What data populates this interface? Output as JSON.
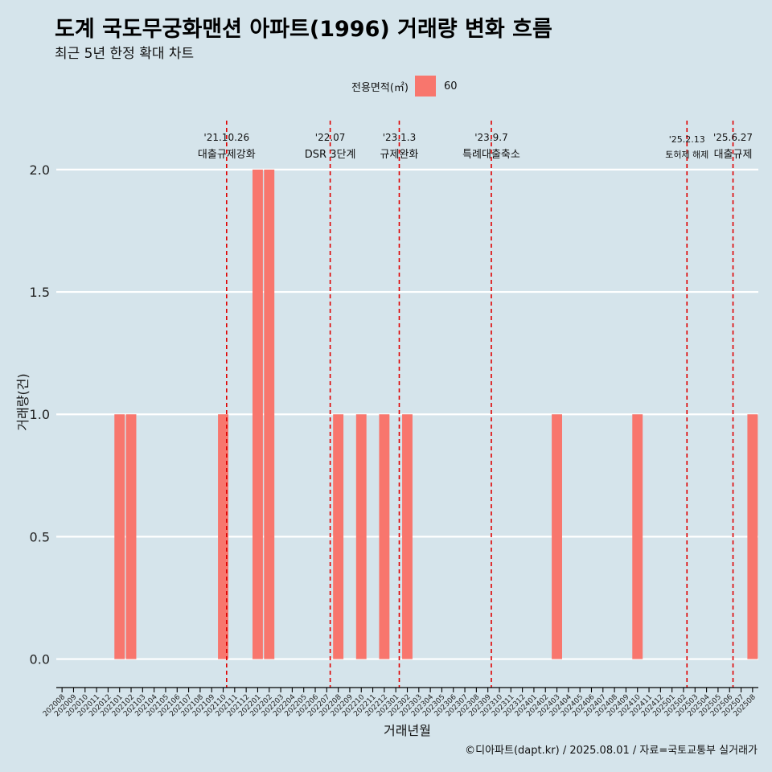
{
  "title": "도계 국도무궁화맨션 아파트(1996) 거래량 변화 흐름",
  "subtitle": "최근 5년 한정 확대 차트",
  "caption": "©디아파트(dapt.kr) / 2025.08.01 / 자료=국토교통부 실거래가",
  "colors": {
    "background": "#d5e4eb",
    "bar": "#f8766d",
    "event_line": "#e00000",
    "grid": "#ffffff"
  },
  "legend": {
    "title": "전용면적(㎡)",
    "items": [
      "60"
    ]
  },
  "chart_data": {
    "type": "bar",
    "xlabel": "거래년월",
    "ylabel": "거래량(건)",
    "ylim": [
      -0.1,
      2.2
    ],
    "yticks": [
      "0.0",
      "0.5",
      "1.0",
      "1.5",
      "2.0"
    ],
    "grid": true,
    "legend_position": "top",
    "categories": [
      "202008",
      "202009",
      "202010",
      "202011",
      "202012",
      "202101",
      "202102",
      "202103",
      "202104",
      "202105",
      "202106",
      "202107",
      "202108",
      "202109",
      "202110",
      "202111",
      "202112",
      "202201",
      "202202",
      "202203",
      "202204",
      "202205",
      "202206",
      "202207",
      "202208",
      "202209",
      "202210",
      "202211",
      "202212",
      "202301",
      "202302",
      "202303",
      "202304",
      "202305",
      "202306",
      "202307",
      "202308",
      "202309",
      "202310",
      "202311",
      "202312",
      "202401",
      "202402",
      "202403",
      "202404",
      "202405",
      "202406",
      "202407",
      "202408",
      "202409",
      "202410",
      "202411",
      "202412",
      "202501",
      "202502",
      "202503",
      "202504",
      "202505",
      "202506",
      "202507",
      "202508"
    ],
    "series": [
      {
        "name": "60",
        "values": [
          0,
          0,
          0,
          0,
          0,
          1,
          1,
          0,
          0,
          0,
          0,
          0,
          0,
          0,
          1,
          0,
          0,
          2,
          2,
          0,
          0,
          0,
          0,
          0,
          1,
          0,
          1,
          0,
          1,
          0,
          1,
          0,
          0,
          0,
          0,
          0,
          0,
          0,
          0,
          0,
          0,
          0,
          0,
          1,
          0,
          0,
          0,
          0,
          0,
          0,
          1,
          0,
          0,
          0,
          0,
          0,
          0,
          0,
          0,
          0,
          1
        ]
      }
    ],
    "events": [
      {
        "date": "'21.10.26",
        "label": "대출규제강화",
        "x": 14.8
      },
      {
        "date": "'22.07",
        "label": "DSR 3단계",
        "x": 23.8
      },
      {
        "date": "'23.1.3",
        "label": "규제완화",
        "x": 29.8
      },
      {
        "date": "'23.9.7",
        "label": "특례대출축소",
        "x": 37.8
      },
      {
        "date": "'25.2.13",
        "label": "토허제 해제",
        "x": 54.8
      },
      {
        "date": "'25.6.27",
        "label": "대출규제",
        "x": 58.8
      }
    ]
  }
}
